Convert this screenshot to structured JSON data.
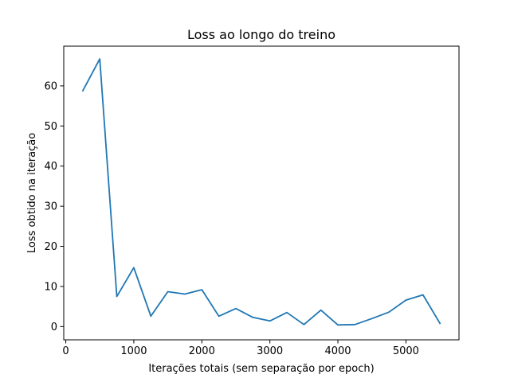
{
  "chart_data": {
    "type": "line",
    "title": "Loss ao longo do treino",
    "xlabel": "Iterações totais (sem separação por epoch)",
    "ylabel": "Loss obtido na iteração",
    "xlim": [
      -30,
      5780
    ],
    "ylim": [
      -3.3,
      69.9
    ],
    "x_ticks": [
      0,
      1000,
      2000,
      3000,
      4000,
      5000
    ],
    "y_ticks": [
      0,
      10,
      20,
      30,
      40,
      50,
      60
    ],
    "grid": false,
    "series": [
      {
        "color": "#1f77b4",
        "x": [
          250,
          500,
          750,
          1000,
          1250,
          1500,
          1750,
          2000,
          2250,
          2500,
          2750,
          3000,
          3250,
          3500,
          3750,
          4000,
          4250,
          4500,
          4750,
          5000,
          5250,
          5500
        ],
        "y": [
          58.8,
          66.7,
          7.5,
          14.7,
          2.6,
          8.7,
          8.1,
          9.2,
          2.6,
          4.5,
          2.3,
          1.4,
          3.5,
          0.5,
          4.1,
          0.4,
          0.5,
          2.0,
          3.6,
          6.6,
          7.9,
          0.8
        ]
      }
    ]
  }
}
